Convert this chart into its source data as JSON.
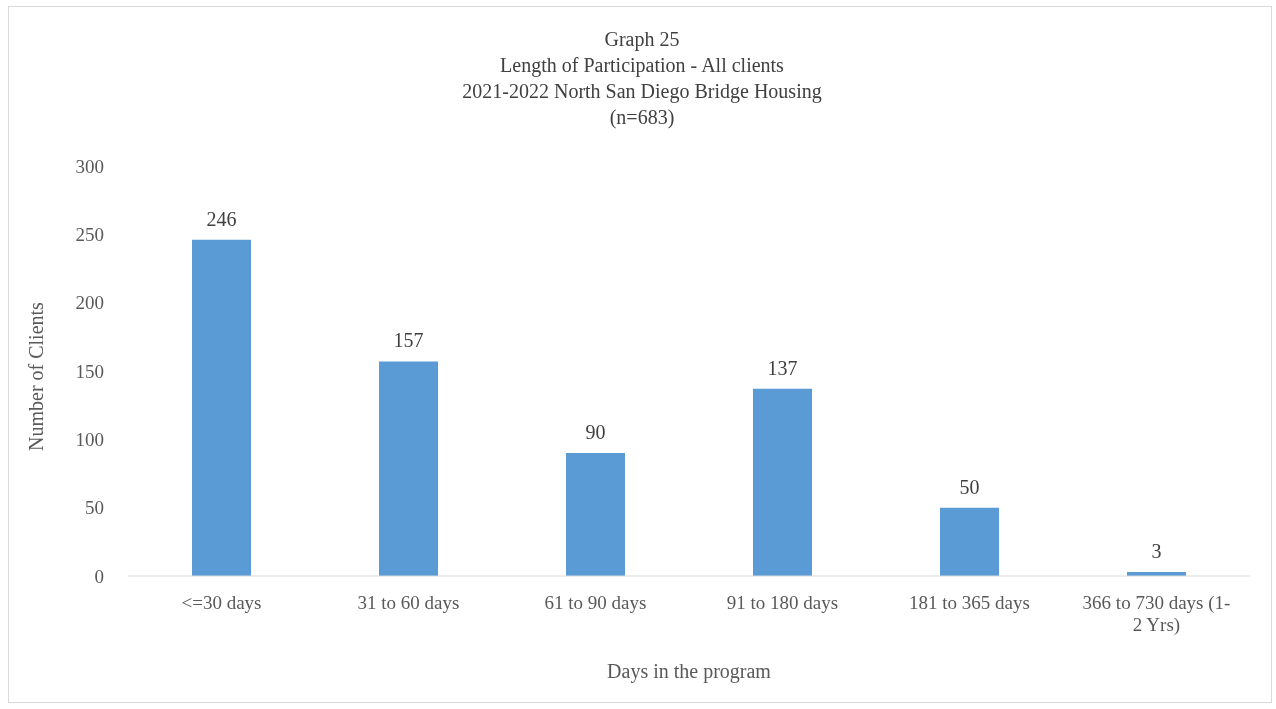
{
  "chart_data": {
    "type": "bar",
    "title": "Graph 25\nLength of Participation - All clients\n2021-2022 North San Diego Bridge Housing\n(n=683)",
    "xlabel": "Days in the program",
    "ylabel": "Number of Clients",
    "categories": [
      "<=30 days",
      "31 to 60 days",
      "61 to 90 days",
      "91 to 180 days",
      "181 to 365 days",
      "366 to 730 days (1-2 Yrs)"
    ],
    "values": [
      246,
      157,
      90,
      137,
      50,
      3
    ],
    "color": "#5b9bd5",
    "ylim": [
      0,
      300
    ],
    "yticks": [
      0,
      50,
      100,
      150,
      200,
      250,
      300
    ],
    "grid": false,
    "data_labels": true
  }
}
